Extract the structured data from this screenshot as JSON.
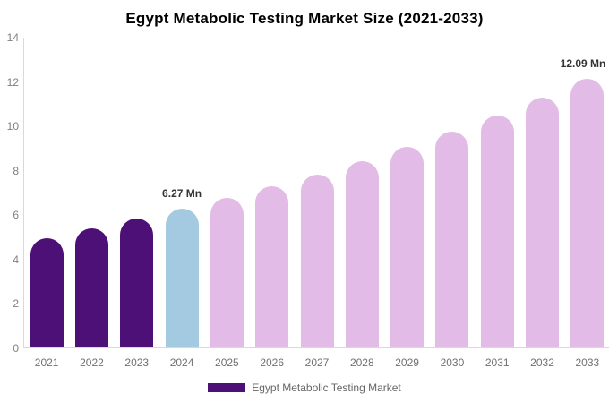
{
  "title": "Egypt Metabolic Testing Market Size (2021-2033)",
  "legend": {
    "label": "Egypt Metabolic Testing Market",
    "swatch_color": "#4D1077"
  },
  "chart_data": {
    "type": "bar",
    "title": "Egypt Metabolic Testing Market Size (2021-2033)",
    "categories": [
      "2021",
      "2022",
      "2023",
      "2024",
      "2025",
      "2026",
      "2027",
      "2028",
      "2029",
      "2030",
      "2031",
      "2032",
      "2033"
    ],
    "values": [
      4.93,
      5.35,
      5.83,
      6.27,
      6.74,
      7.26,
      7.8,
      8.39,
      9.03,
      9.71,
      10.45,
      11.24,
      12.09
    ],
    "unit": "Mn",
    "xlabel": "",
    "ylabel": "",
    "ylim": [
      0,
      14
    ],
    "yticks": [
      0,
      2,
      4,
      6,
      8,
      10,
      12,
      14
    ],
    "grid": false,
    "legend_position": "bottom",
    "bar_colors": [
      "#4D1077",
      "#4D1077",
      "#4D1077",
      "#A3CAE0",
      "#E3BBE7",
      "#E3BBE7",
      "#E3BBE7",
      "#E3BBE7",
      "#E3BBE7",
      "#E3BBE7",
      "#E3BBE7",
      "#E3BBE7",
      "#E3BBE7"
    ],
    "annotations": [
      {
        "category": "2024",
        "text": "6.27 Mn"
      },
      {
        "category": "2033",
        "text": "12.09 Mn"
      }
    ]
  }
}
